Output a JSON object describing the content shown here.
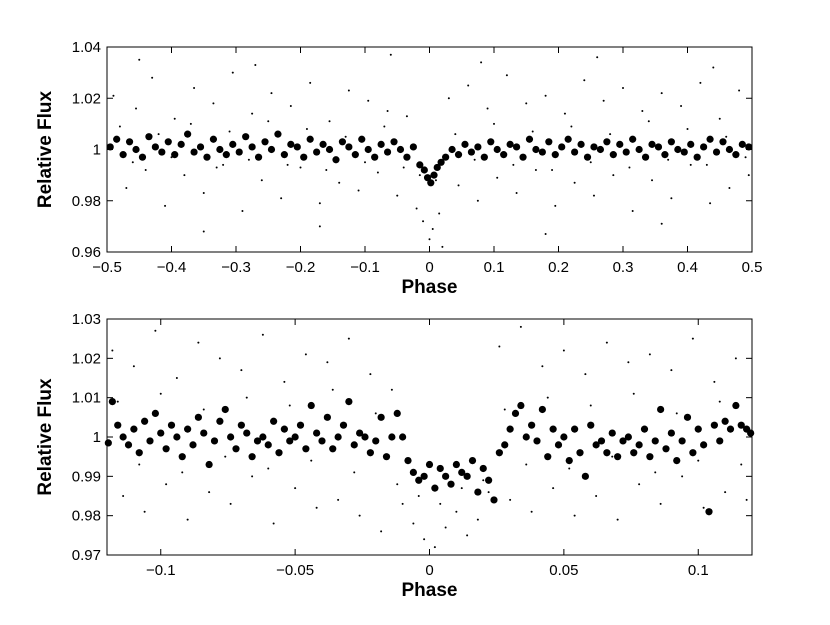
{
  "chart_data": [
    {
      "type": "scatter",
      "xlabel": "Phase",
      "ylabel": "Relative Flux",
      "xlim": [
        -0.5,
        0.5
      ],
      "ylim": [
        0.96,
        1.04
      ],
      "x_ticks": [
        -0.5,
        -0.4,
        -0.3,
        -0.2,
        -0.1,
        0,
        0.1,
        0.2,
        0.3,
        0.4,
        0.5
      ],
      "x_tick_labels": [
        "−0.5",
        "−0.4",
        "−0.3",
        "−0.2",
        "−0.1",
        "0",
        "0.1",
        "0.2",
        "0.3",
        "0.4",
        "0.5"
      ],
      "y_ticks": [
        0.96,
        0.98,
        1.0,
        1.02,
        1.04
      ],
      "y_tick_labels": [
        "0.96",
        "0.98",
        "1",
        "1.02",
        "1.04"
      ],
      "grid": false,
      "series": [
        {
          "marker": "small-dot",
          "color": "#000000",
          "x": [
            -0.49,
            -0.47,
            -0.455,
            -0.44,
            -0.43,
            -0.41,
            -0.395,
            -0.38,
            -0.365,
            -0.35,
            -0.335,
            -0.32,
            -0.305,
            -0.29,
            -0.275,
            -0.26,
            -0.245,
            -0.23,
            -0.215,
            -0.2,
            -0.185,
            -0.17,
            -0.155,
            -0.14,
            -0.125,
            -0.11,
            -0.095,
            -0.08,
            -0.065,
            -0.05,
            -0.035,
            -0.02,
            -0.01,
            0.0,
            0.005,
            0.015,
            0.03,
            0.045,
            0.06,
            0.075,
            0.09,
            0.105,
            0.12,
            0.135,
            0.15,
            0.165,
            0.18,
            0.195,
            0.21,
            0.225,
            0.24,
            0.255,
            0.27,
            0.285,
            0.3,
            0.315,
            0.33,
            0.345,
            0.36,
            0.375,
            0.39,
            0.405,
            0.42,
            0.435,
            0.45,
            0.465,
            0.48,
            0.495,
            -0.48,
            -0.46,
            -0.42,
            -0.4,
            -0.37,
            -0.33,
            -0.31,
            -0.28,
            -0.25,
            -0.22,
            -0.19,
            -0.16,
            -0.13,
            -0.1,
            -0.07,
            -0.04,
            -0.015,
            0.01,
            0.04,
            0.07,
            0.1,
            0.13,
            0.16,
            0.19,
            0.22,
            0.25,
            0.28,
            0.31,
            0.34,
            0.37,
            0.4,
            0.43,
            0.46,
            0.49,
            -0.45,
            -0.35,
            -0.27,
            -0.17,
            -0.06,
            0.02,
            0.08,
            0.18,
            0.26,
            0.36,
            0.44
          ],
          "y": [
            1.021,
            0.985,
            1.016,
            0.992,
            1.028,
            0.978,
            1.012,
            0.99,
            1.024,
            0.983,
            1.018,
            0.994,
            1.03,
            0.976,
            1.014,
            0.988,
            1.022,
            0.981,
            1.017,
            0.993,
            1.026,
            0.979,
            1.011,
            0.987,
            1.023,
            0.984,
            1.019,
            0.991,
            1.015,
            0.982,
            1.013,
            0.977,
            0.972,
            0.965,
            0.969,
            0.975,
            1.02,
            0.986,
            1.025,
            0.98,
            1.016,
            0.989,
            1.029,
            0.983,
            1.018,
            0.992,
            1.021,
            0.978,
            1.014,
            0.987,
            1.027,
            0.982,
            1.019,
            0.99,
            1.024,
            0.976,
            1.015,
            0.988,
            1.022,
            0.981,
            1.017,
            0.994,
            1.026,
            0.979,
            1.012,
            0.985,
            1.023,
            0.99,
            1.009,
            0.995,
            1.006,
            0.997,
            1.01,
            0.993,
            1.007,
            0.996,
            1.011,
            0.994,
            1.008,
            0.992,
            1.005,
            0.995,
            1.009,
            0.993,
            0.99,
            0.988,
            1.006,
            0.996,
            1.01,
            0.994,
            1.007,
            0.992,
            1.009,
            0.995,
            1.006,
            0.993,
            1.011,
            0.996,
            1.008,
            0.994,
            1.005,
            0.997,
            1.035,
            0.968,
            1.033,
            0.97,
            1.037,
            0.962,
            1.034,
            0.967,
            1.036,
            0.971,
            1.032
          ]
        },
        {
          "marker": "large-dot",
          "color": "#000000",
          "x": [
            -0.495,
            -0.485,
            -0.475,
            -0.465,
            -0.455,
            -0.445,
            -0.435,
            -0.425,
            -0.415,
            -0.405,
            -0.395,
            -0.385,
            -0.375,
            -0.365,
            -0.355,
            -0.345,
            -0.335,
            -0.325,
            -0.315,
            -0.305,
            -0.295,
            -0.285,
            -0.275,
            -0.265,
            -0.255,
            -0.245,
            -0.235,
            -0.225,
            -0.215,
            -0.205,
            -0.195,
            -0.185,
            -0.175,
            -0.165,
            -0.155,
            -0.145,
            -0.135,
            -0.125,
            -0.115,
            -0.105,
            -0.095,
            -0.085,
            -0.075,
            -0.065,
            -0.055,
            -0.045,
            -0.035,
            -0.025,
            -0.015,
            -0.008,
            -0.003,
            0.002,
            0.007,
            0.012,
            0.018,
            0.025,
            0.035,
            0.045,
            0.055,
            0.065,
            0.075,
            0.085,
            0.095,
            0.105,
            0.115,
            0.125,
            0.135,
            0.145,
            0.155,
            0.165,
            0.175,
            0.185,
            0.195,
            0.205,
            0.215,
            0.225,
            0.235,
            0.245,
            0.255,
            0.265,
            0.275,
            0.285,
            0.295,
            0.305,
            0.315,
            0.325,
            0.335,
            0.345,
            0.355,
            0.365,
            0.375,
            0.385,
            0.395,
            0.405,
            0.415,
            0.425,
            0.435,
            0.445,
            0.455,
            0.465,
            0.475,
            0.485,
            0.495
          ],
          "y": [
            1.001,
            1.004,
            0.998,
            1.003,
            1.0,
            0.997,
            1.005,
            1.001,
            0.999,
            1.003,
            0.998,
            1.002,
            1.006,
            0.999,
            1.001,
            0.997,
            1.004,
            1.0,
            0.998,
            1.002,
            0.999,
            1.005,
            1.001,
            0.997,
            1.003,
            1.0,
            1.006,
            0.998,
            1.002,
            1.001,
            0.997,
            1.004,
            0.999,
            1.002,
            1.0,
            0.996,
            1.003,
            1.001,
            0.998,
            1.004,
            1.0,
            0.997,
            1.002,
            0.999,
            1.003,
            1.0,
            0.997,
            1.001,
            0.994,
            0.992,
            0.989,
            0.987,
            0.99,
            0.993,
            0.995,
            0.997,
            1.0,
            0.998,
            1.002,
            0.999,
            1.001,
            0.997,
            1.003,
            1.0,
            0.998,
            1.002,
            1.001,
            0.997,
            1.004,
            1.0,
            0.999,
            1.003,
            0.998,
            1.001,
            1.004,
            0.999,
            1.002,
            0.997,
            1.001,
            1.0,
            1.003,
            0.998,
            1.002,
            0.999,
            1.004,
            1.0,
            0.997,
            1.002,
            1.001,
            0.998,
            1.003,
            1.0,
            0.999,
            1.002,
            0.997,
            1.001,
            1.004,
            0.999,
            1.003,
            1.0,
            0.998,
            1.002,
            1.001
          ]
        }
      ]
    },
    {
      "type": "scatter",
      "xlabel": "Phase",
      "ylabel": "Relative Flux",
      "xlim": [
        -0.12,
        0.12
      ],
      "ylim": [
        0.97,
        1.03
      ],
      "x_ticks": [
        -0.1,
        -0.05,
        0,
        0.05,
        0.1
      ],
      "x_tick_labels": [
        "−0.1",
        "−0.05",
        "0",
        "0.05",
        "0.1"
      ],
      "y_ticks": [
        0.97,
        0.98,
        0.99,
        1.0,
        1.01,
        1.02,
        1.03
      ],
      "y_tick_labels": [
        "0.97",
        "0.98",
        "0.99",
        "1",
        "1.01",
        "1.02",
        "1.03"
      ],
      "grid": false,
      "series": [
        {
          "marker": "small-dot",
          "color": "#000000",
          "x": [
            -0.118,
            -0.114,
            -0.11,
            -0.106,
            -0.102,
            -0.098,
            -0.094,
            -0.09,
            -0.086,
            -0.082,
            -0.078,
            -0.074,
            -0.07,
            -0.066,
            -0.062,
            -0.058,
            -0.054,
            -0.05,
            -0.046,
            -0.042,
            -0.038,
            -0.034,
            -0.03,
            -0.026,
            -0.022,
            -0.018,
            -0.014,
            -0.01,
            -0.006,
            -0.002,
            0.002,
            0.006,
            0.01,
            0.014,
            0.018,
            0.022,
            0.026,
            0.03,
            0.034,
            0.038,
            0.042,
            0.046,
            0.05,
            0.054,
            0.058,
            0.062,
            0.066,
            0.07,
            0.074,
            0.078,
            0.082,
            0.086,
            0.09,
            0.094,
            0.098,
            0.102,
            0.106,
            0.11,
            0.114,
            0.118,
            -0.116,
            -0.108,
            -0.1,
            -0.092,
            -0.084,
            -0.076,
            -0.068,
            -0.06,
            -0.052,
            -0.044,
            -0.036,
            -0.028,
            -0.02,
            -0.012,
            -0.004,
            0.004,
            0.012,
            0.02,
            0.028,
            0.036,
            0.044,
            0.052,
            0.06,
            0.068,
            0.076,
            0.084,
            0.092,
            0.1,
            0.108,
            0.116
          ],
          "y": [
            1.022,
            0.985,
            1.018,
            0.981,
            1.027,
            0.988,
            1.015,
            0.979,
            1.024,
            0.986,
            1.02,
            0.983,
            1.017,
            0.99,
            1.026,
            0.978,
            1.014,
            0.987,
            1.021,
            0.982,
            1.019,
            0.984,
            1.025,
            0.98,
            1.016,
            0.976,
            1.012,
            0.983,
            0.978,
            0.974,
            0.972,
            0.977,
            0.981,
            0.975,
            0.979,
            0.986,
            1.023,
            0.984,
            1.028,
            0.981,
            1.018,
            0.987,
            1.022,
            0.98,
            1.016,
            0.985,
            1.024,
            0.979,
            1.019,
            0.988,
            1.021,
            0.983,
            1.017,
            0.99,
            1.025,
            0.982,
            1.014,
            0.986,
            1.02,
            0.984,
            1.009,
            0.993,
            1.011,
            0.991,
            1.007,
            0.995,
            1.01,
            0.992,
            1.008,
            0.994,
            1.012,
            0.991,
            1.006,
            0.988,
            0.985,
            0.983,
            0.987,
            0.989,
            1.007,
            0.993,
            1.01,
            0.992,
            1.008,
            0.995,
            1.011,
            0.991,
            1.006,
            0.994,
            1.009,
            0.993
          ]
        },
        {
          "marker": "large-dot",
          "color": "#000000",
          "x": [
            -0.1195,
            -0.118,
            -0.116,
            -0.114,
            -0.112,
            -0.11,
            -0.108,
            -0.106,
            -0.104,
            -0.102,
            -0.1,
            -0.098,
            -0.096,
            -0.094,
            -0.092,
            -0.09,
            -0.088,
            -0.086,
            -0.084,
            -0.082,
            -0.08,
            -0.078,
            -0.076,
            -0.074,
            -0.072,
            -0.07,
            -0.068,
            -0.066,
            -0.064,
            -0.062,
            -0.06,
            -0.058,
            -0.056,
            -0.054,
            -0.052,
            -0.05,
            -0.048,
            -0.046,
            -0.044,
            -0.042,
            -0.04,
            -0.038,
            -0.036,
            -0.034,
            -0.032,
            -0.03,
            -0.028,
            -0.026,
            -0.024,
            -0.022,
            -0.02,
            -0.018,
            -0.016,
            -0.014,
            -0.012,
            -0.01,
            -0.008,
            -0.006,
            -0.004,
            -0.002,
            0.0,
            0.002,
            0.004,
            0.006,
            0.008,
            0.01,
            0.012,
            0.014,
            0.016,
            0.018,
            0.02,
            0.022,
            0.024,
            0.026,
            0.028,
            0.03,
            0.032,
            0.034,
            0.036,
            0.038,
            0.04,
            0.042,
            0.044,
            0.046,
            0.048,
            0.05,
            0.052,
            0.054,
            0.056,
            0.058,
            0.06,
            0.062,
            0.064,
            0.066,
            0.068,
            0.07,
            0.072,
            0.074,
            0.076,
            0.078,
            0.08,
            0.082,
            0.084,
            0.086,
            0.088,
            0.09,
            0.092,
            0.094,
            0.096,
            0.098,
            0.1,
            0.102,
            0.104,
            0.106,
            0.108,
            0.11,
            0.112,
            0.114,
            0.116,
            0.118,
            0.1195
          ],
          "y": [
            0.9985,
            1.009,
            1.003,
            1.0,
            0.998,
            1.002,
            0.996,
            1.004,
            0.999,
            1.006,
            1.001,
            0.997,
            1.003,
            1.0,
            0.995,
            1.002,
            0.998,
            1.005,
            1.001,
            0.993,
            0.999,
            1.004,
            1.007,
            1.0,
            0.997,
            1.003,
            1.001,
            0.995,
            0.999,
            1.0,
            0.998,
            1.004,
            0.996,
            1.002,
            0.999,
            1.0,
            1.003,
            0.997,
            1.008,
            1.001,
            0.999,
            1.005,
            0.997,
            1.0,
            1.003,
            1.009,
            0.998,
            1.001,
            1.0,
            0.996,
            0.999,
            1.005,
            0.995,
            1.0,
            1.006,
            1.0,
            0.994,
            0.991,
            0.989,
            0.99,
            0.993,
            0.987,
            0.992,
            0.99,
            0.988,
            0.993,
            0.991,
            0.99,
            0.994,
            0.986,
            0.992,
            0.989,
            0.984,
            0.996,
            0.998,
            1.002,
            1.006,
            1.008,
            1.0,
            1.003,
            0.999,
            1.007,
            0.995,
            1.002,
            0.998,
            1.0,
            0.994,
            1.002,
            0.996,
            0.99,
            1.003,
            0.998,
            0.999,
            0.996,
            1.001,
            0.995,
            0.999,
            1.0,
            0.996,
            0.998,
            1.002,
            0.995,
            0.999,
            1.007,
            0.997,
            1.001,
            0.994,
            0.999,
            1.005,
            0.996,
            1.002,
            0.998,
            0.981,
            1.003,
            0.999,
            1.004,
            1.002,
            1.008,
            1.003,
            1.002,
            1.001
          ]
        }
      ]
    }
  ]
}
